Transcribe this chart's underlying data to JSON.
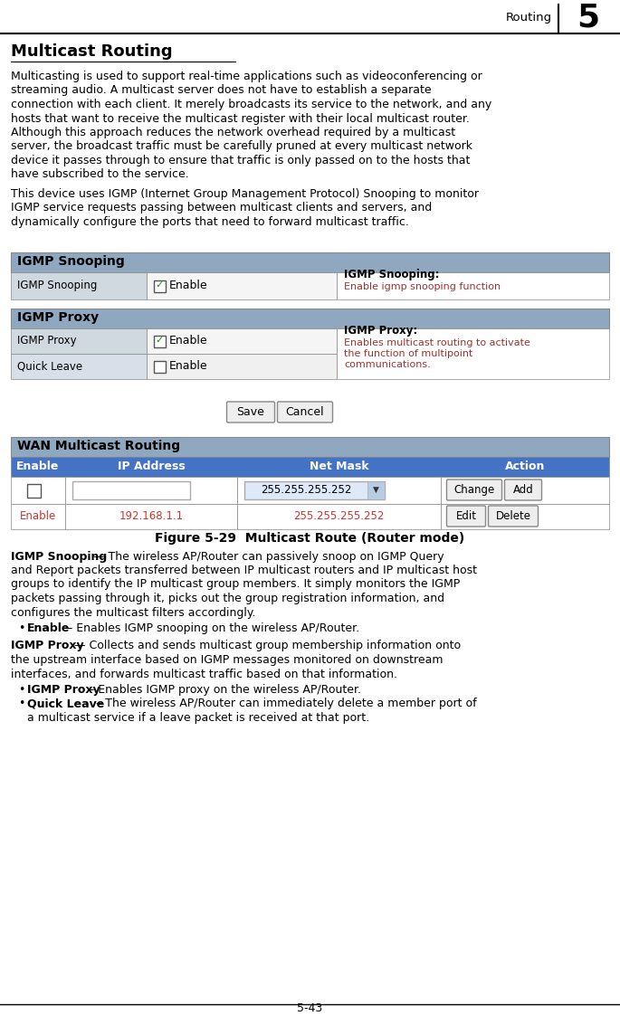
{
  "page_title": "Routing",
  "page_number": "5",
  "section_title": "Multicast Routing",
  "para1_lines": [
    "Multicasting is used to support real-time applications such as videoconferencing or",
    "streaming audio. A multicast server does not have to establish a separate",
    "connection with each client. It merely broadcasts its service to the network, and any",
    "hosts that want to receive the multicast register with their local multicast router.",
    "Although this approach reduces the network overhead required by a multicast",
    "server, the broadcast traffic must be carefully pruned at every multicast network",
    "device it passes through to ensure that traffic is only passed on to the hosts that",
    "have subscribed to the service."
  ],
  "para2_lines": [
    "This device uses IGMP (Internet Group Management Protocol) Snooping to monitor",
    "IGMP service requests passing between multicast clients and servers, and",
    "dynamically configure the ports that need to forward multicast traffic."
  ],
  "figure_caption": "Figure 5-29  Multicast Route (Router mode)",
  "desc1_line1_bold": "IGMP Snooping",
  "desc1_line1_rest": " — The wireless AP/Router can passively snoop on IGMP Query",
  "desc1_lines": [
    "and Report packets transferred between IP multicast routers and IP multicast host",
    "groups to identify the IP multicast group members. It simply monitors the IGMP",
    "packets passing through it, picks out the group registration information, and",
    "configures the multicast filters accordingly."
  ],
  "bullet1_bold": "Enable",
  "bullet1_rest": " – Enables IGMP snooping on the wireless AP/Router.",
  "desc2_line1_bold": "IGMP Proxy",
  "desc2_line1_rest": " — Collects and sends multicast group membership information onto",
  "desc2_lines": [
    "the upstream interface based on IGMP messages monitored on downstream",
    "interfaces, and forwards multicast traffic based on that information."
  ],
  "bullet2_bold": "IGMP Proxy",
  "bullet2_rest": " – Enables IGMP proxy on the wireless AP/Router.",
  "bullet3_bold": "Quick Leave",
  "bullet3_rest": " – The wireless AP/Router can immediately delete a member port of",
  "bullet3_line2": "a multicast service if a leave packet is received at that port.",
  "page_footer": "5-43",
  "section_bg": "#8fa8c0",
  "table_blue": "#4472c4",
  "hint_color": "#993333",
  "enable_color": "#cc3333",
  "border_color": "#888888",
  "label_bg": "#d0d8e0",
  "ql_bg": "#d8dfe8"
}
